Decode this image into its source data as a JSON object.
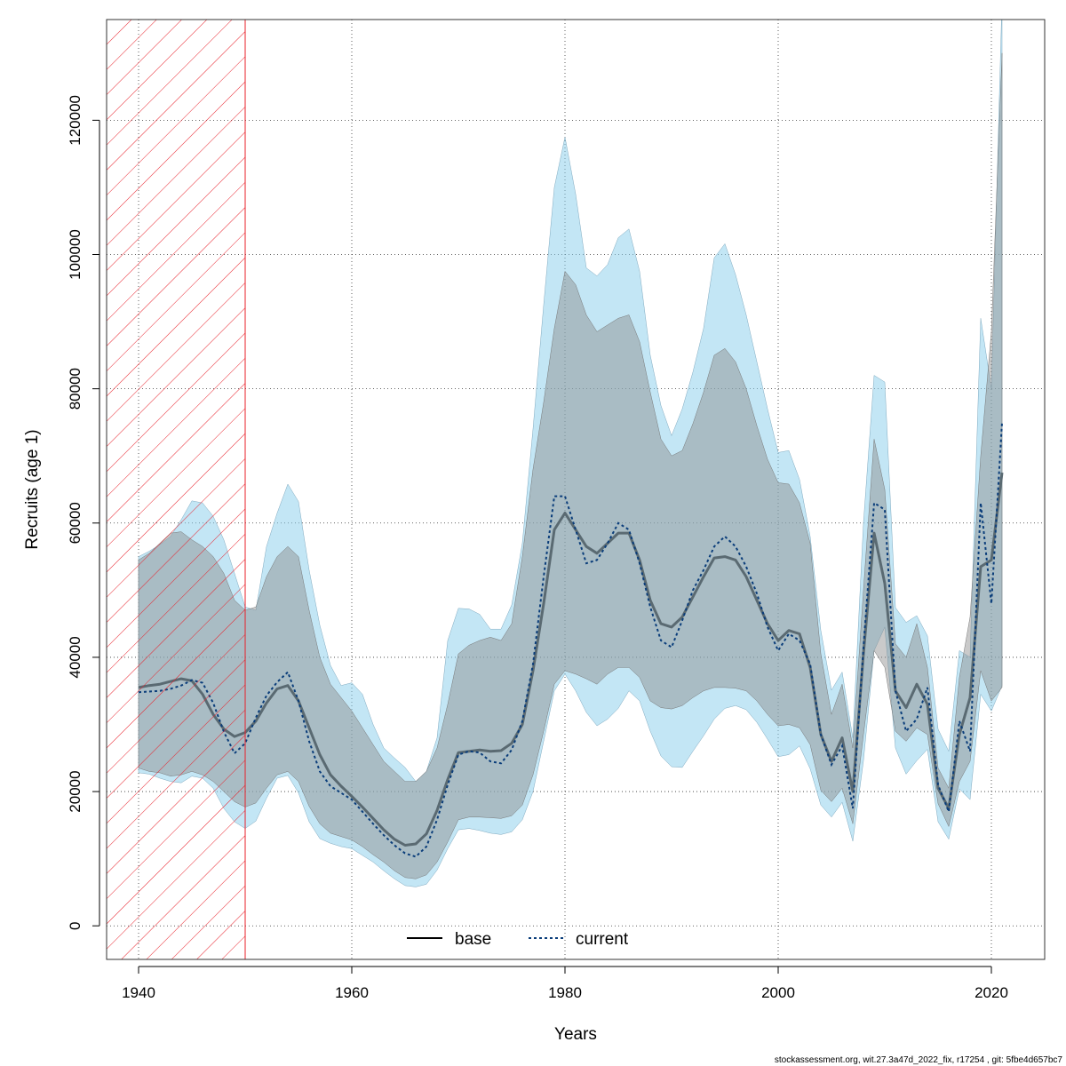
{
  "chart_data": {
    "type": "line",
    "title": "",
    "xlabel": "Years",
    "ylabel": "Recruits (age 1)",
    "xlim": [
      1937,
      2025
    ],
    "ylim": [
      -5000,
      135000
    ],
    "x_ticks": [
      1940,
      1960,
      1980,
      2000,
      2020
    ],
    "y_ticks": [
      0,
      20000,
      40000,
      60000,
      80000,
      100000,
      120000
    ],
    "grid": true,
    "hatched_region": {
      "x_start": 1937,
      "x_end": 1950,
      "color": "#e8202a"
    },
    "legend": {
      "position": "bottom-center",
      "entries": [
        {
          "label": "base",
          "color": "#000000",
          "style": "solid"
        },
        {
          "label": "current",
          "color": "#0a3d7a",
          "style": "dotted"
        }
      ]
    },
    "footer": "stockassessment.org, wit.27.3a47d_2022_fix, r17254 , git: 5fbe4d657bc7",
    "series": [
      {
        "name": "base",
        "line_color": "#5a6a72",
        "band_color": "#8a8a8a",
        "x": [
          1940,
          1941,
          1942,
          1943,
          1944,
          1945,
          1946,
          1947,
          1948,
          1949,
          1950,
          1951,
          1952,
          1953,
          1954,
          1955,
          1956,
          1957,
          1958,
          1959,
          1960,
          1961,
          1962,
          1963,
          1964,
          1965,
          1966,
          1967,
          1968,
          1969,
          1970,
          1971,
          1972,
          1973,
          1974,
          1975,
          1976,
          1977,
          1978,
          1979,
          1980,
          1981,
          1982,
          1983,
          1984,
          1985,
          1986,
          1987,
          1988,
          1989,
          1990,
          1991,
          1992,
          1993,
          1994,
          1995,
          1996,
          1997,
          1998,
          1999,
          2000,
          2001,
          2002,
          2003,
          2004,
          2005,
          2006,
          2007,
          2008,
          2009,
          2010,
          2011,
          2012,
          2013,
          2014,
          2015,
          2016,
          2017,
          2018,
          2019,
          2020,
          2021
        ],
        "mid": [
          35500,
          35800,
          36000,
          36400,
          36800,
          36500,
          34500,
          31500,
          29300,
          28200,
          28800,
          30500,
          33200,
          35300,
          35800,
          33500,
          29500,
          25500,
          22500,
          20800,
          19300,
          17700,
          16000,
          14300,
          12900,
          12000,
          12200,
          13700,
          17200,
          21800,
          25800,
          26000,
          26200,
          26000,
          26100,
          27200,
          30000,
          38000,
          48000,
          59000,
          61500,
          59000,
          56500,
          55500,
          57000,
          58500,
          58500,
          54500,
          48500,
          45000,
          44500,
          46000,
          49000,
          52000,
          54800,
          55000,
          54500,
          52000,
          48500,
          45000,
          42500,
          44000,
          43500,
          38500,
          28500,
          24500,
          28000,
          20000,
          40500,
          58500,
          51000,
          35000,
          32500,
          36000,
          33000,
          20500,
          17500,
          28500,
          34000,
          53500,
          54500,
          67500
        ],
        "lo": [
          23500,
          23000,
          22800,
          22300,
          22500,
          23000,
          22500,
          21500,
          20000,
          18500,
          17700,
          18300,
          20500,
          22500,
          23000,
          21500,
          17800,
          15200,
          13800,
          13300,
          12800,
          11800,
          10600,
          9500,
          8200,
          7200,
          7000,
          7600,
          9500,
          12500,
          15800,
          16200,
          16200,
          16100,
          16000,
          16400,
          18000,
          22500,
          29000,
          36000,
          38000,
          37500,
          36800,
          36000,
          37500,
          38500,
          38500,
          37000,
          33500,
          32500,
          32300,
          32800,
          34000,
          35000,
          35500,
          35500,
          35400,
          35000,
          33500,
          31500,
          29800,
          30000,
          29500,
          27000,
          20200,
          18500,
          20500,
          15200,
          28500,
          41000,
          38500,
          29000,
          27500,
          29500,
          28500,
          18200,
          14800,
          21500,
          24500,
          38000,
          33500,
          35500
        ],
        "hi": [
          54500,
          55500,
          57000,
          58500,
          58700,
          57500,
          56500,
          55000,
          52500,
          48500,
          47000,
          47500,
          52000,
          55000,
          56500,
          55000,
          47000,
          40000,
          36000,
          34000,
          32000,
          29500,
          27000,
          24500,
          23000,
          21500,
          21500,
          23000,
          26500,
          33000,
          40500,
          41800,
          42500,
          43000,
          42500,
          45000,
          55000,
          68000,
          78000,
          89000,
          97500,
          95500,
          91000,
          88500,
          89500,
          90500,
          91000,
          87000,
          79500,
          72500,
          70000,
          70800,
          74800,
          79500,
          85000,
          86000,
          84000,
          80000,
          74500,
          69500,
          66000,
          65800,
          63000,
          57000,
          40500,
          31500,
          36000,
          26500,
          50000,
          72500,
          65000,
          42000,
          40000,
          45000,
          38500,
          23500,
          20500,
          37000,
          46000,
          70000,
          88500,
          130000
        ]
      },
      {
        "name": "current",
        "line_color": "#0a3d7a",
        "band_color": "#87ceeb",
        "x": [
          1940,
          1941,
          1942,
          1943,
          1944,
          1945,
          1946,
          1947,
          1948,
          1949,
          1950,
          1951,
          1952,
          1953,
          1954,
          1955,
          1956,
          1957,
          1958,
          1959,
          1960,
          1961,
          1962,
          1963,
          1964,
          1965,
          1966,
          1967,
          1968,
          1969,
          1970,
          1971,
          1972,
          1973,
          1974,
          1975,
          1976,
          1977,
          1978,
          1979,
          1980,
          1981,
          1982,
          1983,
          1984,
          1985,
          1986,
          1987,
          1988,
          1989,
          1990,
          1991,
          1992,
          1993,
          1994,
          1995,
          1996,
          1997,
          1998,
          1999,
          2000,
          2001,
          2002,
          2003,
          2004,
          2005,
          2006,
          2007,
          2008,
          2009,
          2010,
          2011,
          2012,
          2013,
          2014,
          2015,
          2016,
          2017,
          2018,
          2019,
          2020,
          2021
        ],
        "mid": [
          34800,
          34900,
          35000,
          35300,
          35800,
          36600,
          36200,
          33200,
          28900,
          25700,
          27200,
          31000,
          34300,
          36300,
          37800,
          33500,
          27500,
          23000,
          20800,
          19800,
          18800,
          17000,
          15200,
          13500,
          12000,
          10800,
          10300,
          11800,
          15800,
          21000,
          25500,
          26000,
          25800,
          24500,
          24200,
          26200,
          30500,
          39000,
          52000,
          64000,
          64000,
          59000,
          54000,
          54500,
          57000,
          60000,
          59000,
          54000,
          47500,
          42500,
          41500,
          45500,
          50000,
          53000,
          56500,
          58000,
          56500,
          53500,
          49500,
          44500,
          41000,
          43500,
          42500,
          39000,
          28500,
          24000,
          26800,
          17500,
          41500,
          63000,
          62000,
          35000,
          29000,
          30800,
          35500,
          21000,
          17000,
          30500,
          26000,
          63000,
          48000,
          75000
        ],
        "lo": [
          22800,
          22600,
          22000,
          21500,
          21300,
          22300,
          22000,
          20500,
          17500,
          15500,
          14500,
          15600,
          19000,
          22000,
          22400,
          19800,
          15500,
          13000,
          12300,
          11800,
          11500,
          10500,
          9500,
          8200,
          7000,
          6000,
          5800,
          6200,
          8300,
          11500,
          14300,
          14500,
          14200,
          13800,
          13600,
          14000,
          15800,
          20000,
          27500,
          35000,
          37500,
          35000,
          31800,
          29800,
          30800,
          32400,
          35000,
          33500,
          29000,
          25300,
          23700,
          23600,
          26000,
          28300,
          30800,
          32400,
          32800,
          32200,
          30300,
          27800,
          25200,
          25500,
          26800,
          23400,
          18000,
          16200,
          18400,
          12600,
          24600,
          41000,
          44500,
          26500,
          22600,
          24600,
          26300,
          15500,
          12900,
          20400,
          18800,
          34500,
          32000,
          35800
        ],
        "hi": [
          55000,
          55800,
          56800,
          58000,
          60500,
          63300,
          63000,
          61000,
          57500,
          52500,
          47500,
          47000,
          56500,
          61500,
          65800,
          63200,
          53000,
          44800,
          38800,
          35800,
          36200,
          34500,
          30000,
          26500,
          25000,
          23600,
          21500,
          23000,
          28000,
          42500,
          47300,
          47200,
          46400,
          44200,
          44200,
          47800,
          57000,
          74000,
          92500,
          110000,
          117500,
          109000,
          98000,
          96800,
          98500,
          102500,
          103800,
          97500,
          85000,
          77500,
          73000,
          77000,
          82500,
          89000,
          99500,
          101600,
          97000,
          91000,
          84000,
          77000,
          70500,
          70800,
          66500,
          58000,
          44000,
          35100,
          37800,
          28000,
          60000,
          82000,
          81000,
          47400,
          45200,
          46200,
          43200,
          29300,
          26000,
          41000,
          40000,
          90500,
          80000,
          138000
        ]
      }
    ]
  }
}
